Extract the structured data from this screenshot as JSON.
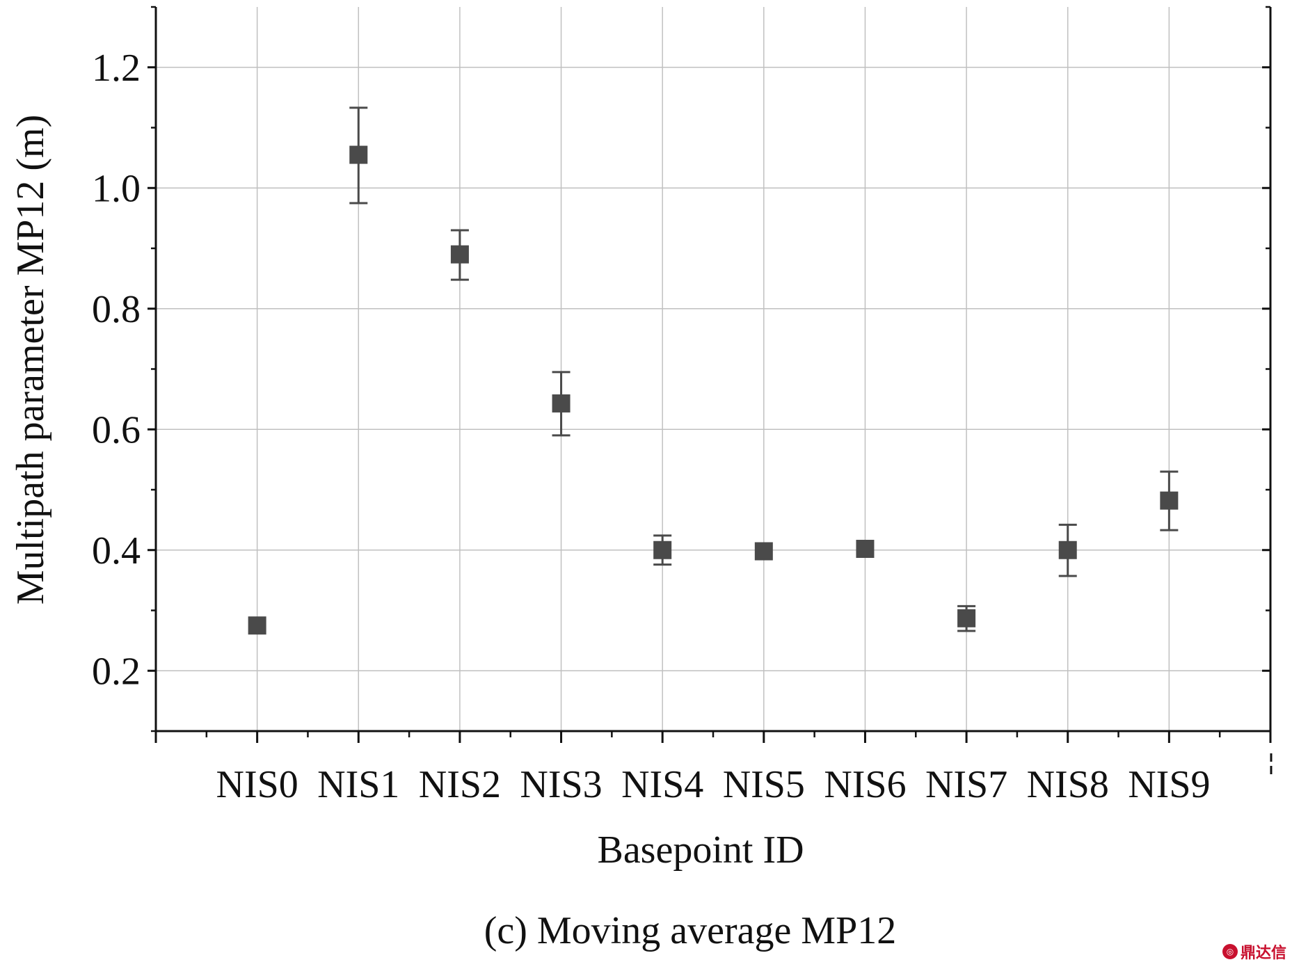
{
  "chart_data": {
    "type": "scatter",
    "title": "",
    "caption": "(c) Moving average MP12",
    "xlabel": "Basepoint ID",
    "ylabel": "Multipath parameter MP12 (m)",
    "categories": [
      "NIS0",
      "NIS1",
      "NIS2",
      "NIS3",
      "NIS4",
      "NIS5",
      "NIS6",
      "NIS7",
      "NIS8",
      "NIS9"
    ],
    "series": [
      {
        "values": [
          0.275,
          1.055,
          0.89,
          0.643,
          0.4,
          0.398,
          0.402,
          0.287,
          0.4,
          0.482
        ],
        "err_low": [
          0.275,
          0.975,
          0.848,
          0.59,
          0.376,
          0.398,
          0.402,
          0.266,
          0.357,
          0.433
        ],
        "err_high": [
          0.275,
          1.133,
          0.93,
          0.695,
          0.424,
          0.398,
          0.402,
          0.307,
          0.442,
          0.53
        ],
        "color": "#4a4a4a",
        "marker": "square"
      }
    ],
    "ylim": [
      0.1,
      1.3
    ],
    "yticks": [
      0.2,
      0.4,
      0.6,
      0.8,
      1.0,
      1.2
    ],
    "ytick_labels": [
      "0.2",
      "0.4",
      "0.6",
      "0.8",
      "1.0",
      "1.2"
    ],
    "grid": true,
    "colors": {
      "marker": "#4a4a4a",
      "grid": "#c0c0c0",
      "axis": "#111111"
    }
  },
  "watermark": {
    "text": "鼎达信",
    "icon": "ddx-logo"
  }
}
